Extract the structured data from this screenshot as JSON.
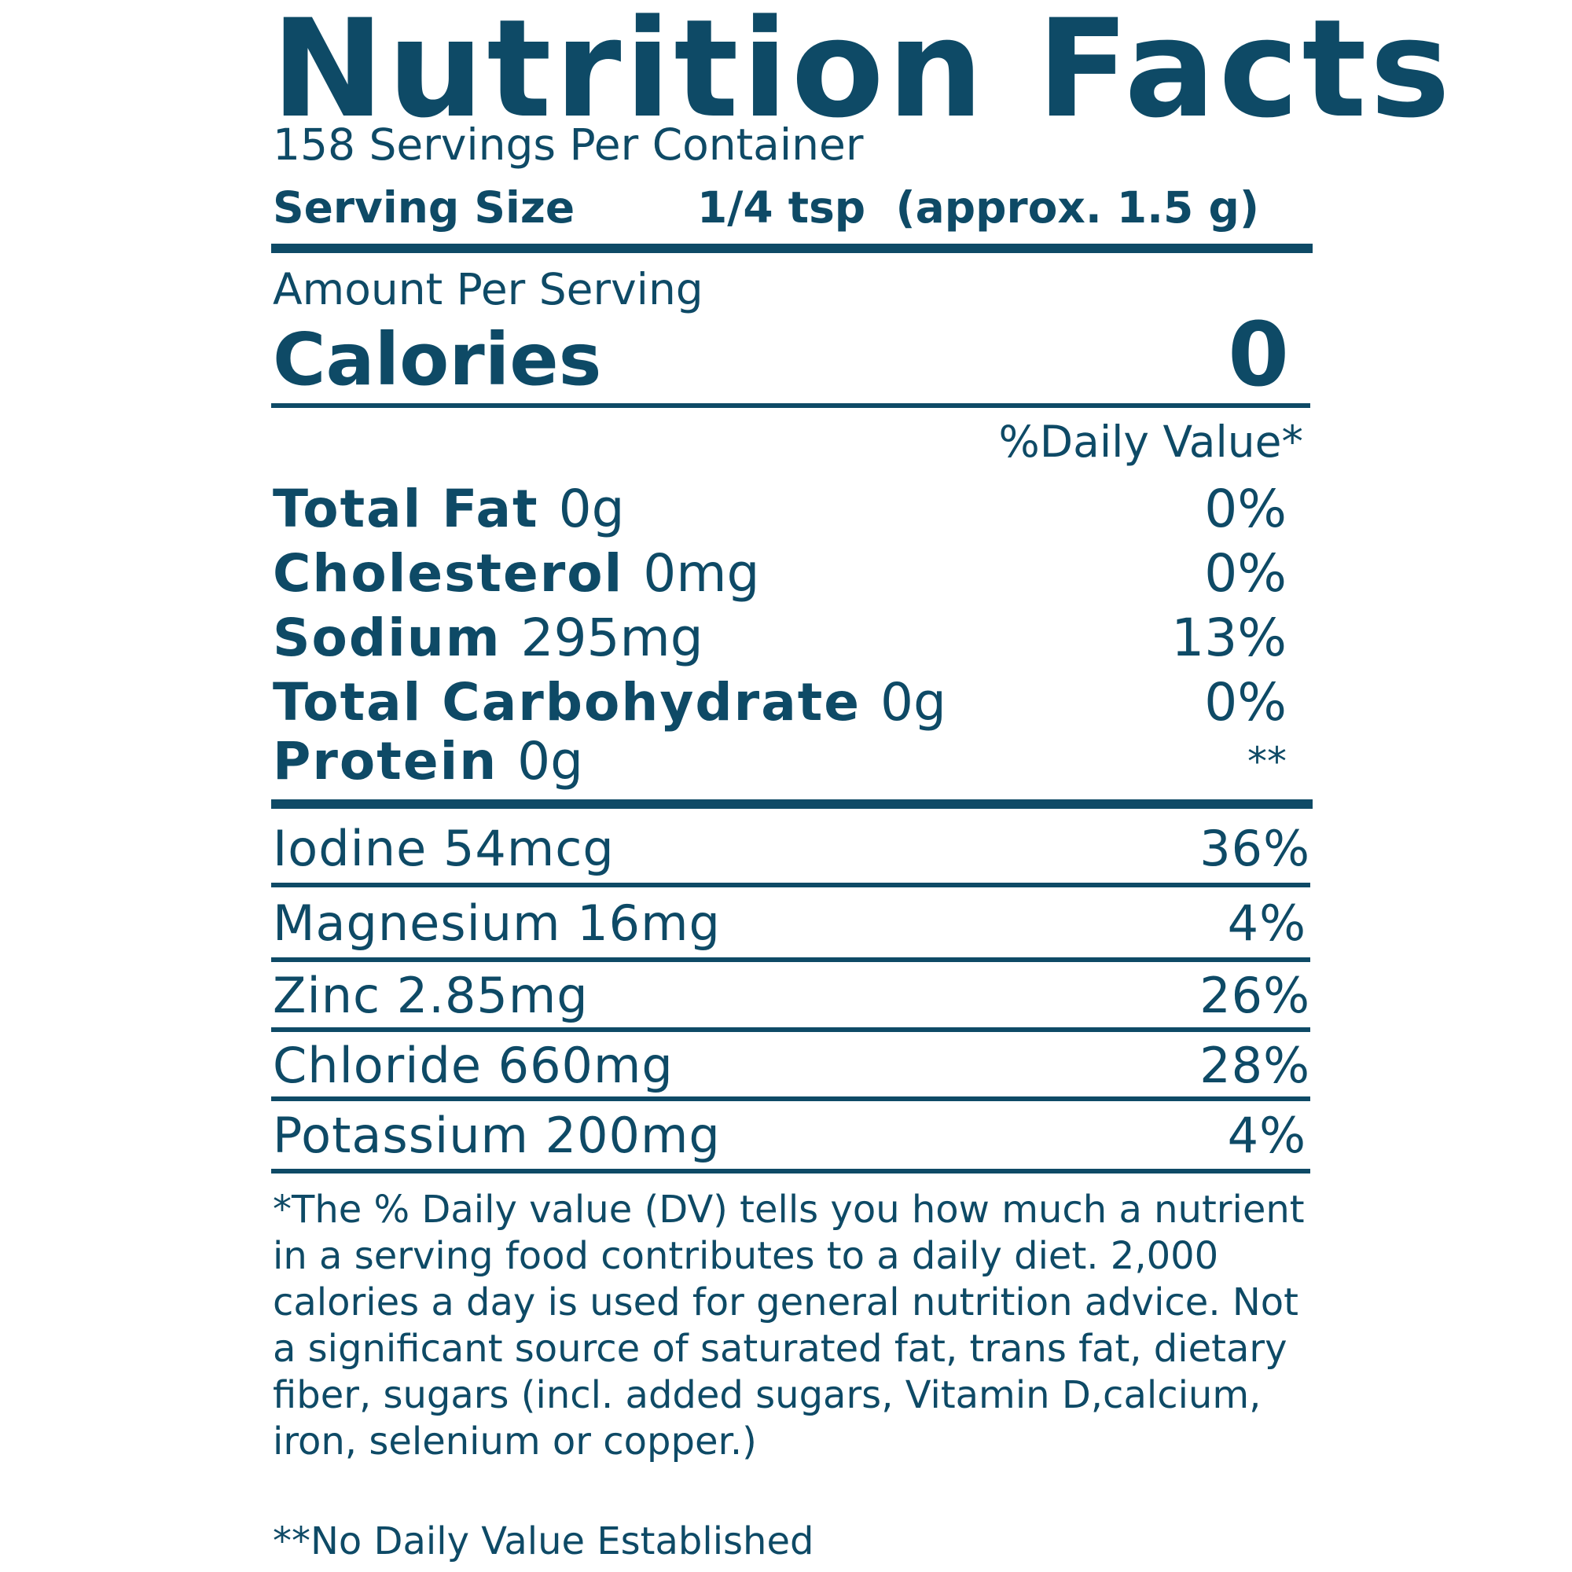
{
  "label": {
    "title": "Nutrition Facts",
    "servings_per_container": "158 Servings Per Container",
    "serving_size_label": "Serving Size",
    "serving_size_value": "1/4 tsp  (approx. 1.5 g)",
    "amount_per_serving": "Amount Per Serving",
    "calories_label": "Calories",
    "calories_value": "0",
    "daily_value_header": "%Daily Value*",
    "nutrients": [
      {
        "name": "Total Fat",
        "amount": "0g",
        "dv": "0%"
      },
      {
        "name": "Cholesterol",
        "amount": "0mg",
        "dv": "0%"
      },
      {
        "name": "Sodium",
        "amount": "295mg",
        "dv": "13%"
      },
      {
        "name": "Total Carbohydrate",
        "amount": "0g",
        "dv": "0%"
      },
      {
        "name": "Protein",
        "amount": "0g",
        "dv": "**"
      }
    ],
    "minerals": [
      {
        "label": "Iodine 54mcg",
        "dv": "36%"
      },
      {
        "label": "Magnesium 16mg",
        "dv": "4%"
      },
      {
        "label": "Zinc 2.85mg",
        "dv": "26%"
      },
      {
        "label": "Chloride 660mg",
        "dv": "28%"
      },
      {
        "label": "Potassium 200mg",
        "dv": "4%"
      }
    ],
    "footnote": "*The % Daily value (DV) tells you how much a nutrient in a serving food contributes to a daily diet. 2,000 calories a day is used for general nutrition advice. Not a significant source of saturated fat, trans fat, dietary fiber, sugars (incl. added sugars, Vitamin D,calcium, iron, selenium or copper.)",
    "footnote_no_dv": "**No Daily Value Established"
  },
  "colors": {
    "text": "#0e4a66",
    "background": "#ffffff"
  }
}
